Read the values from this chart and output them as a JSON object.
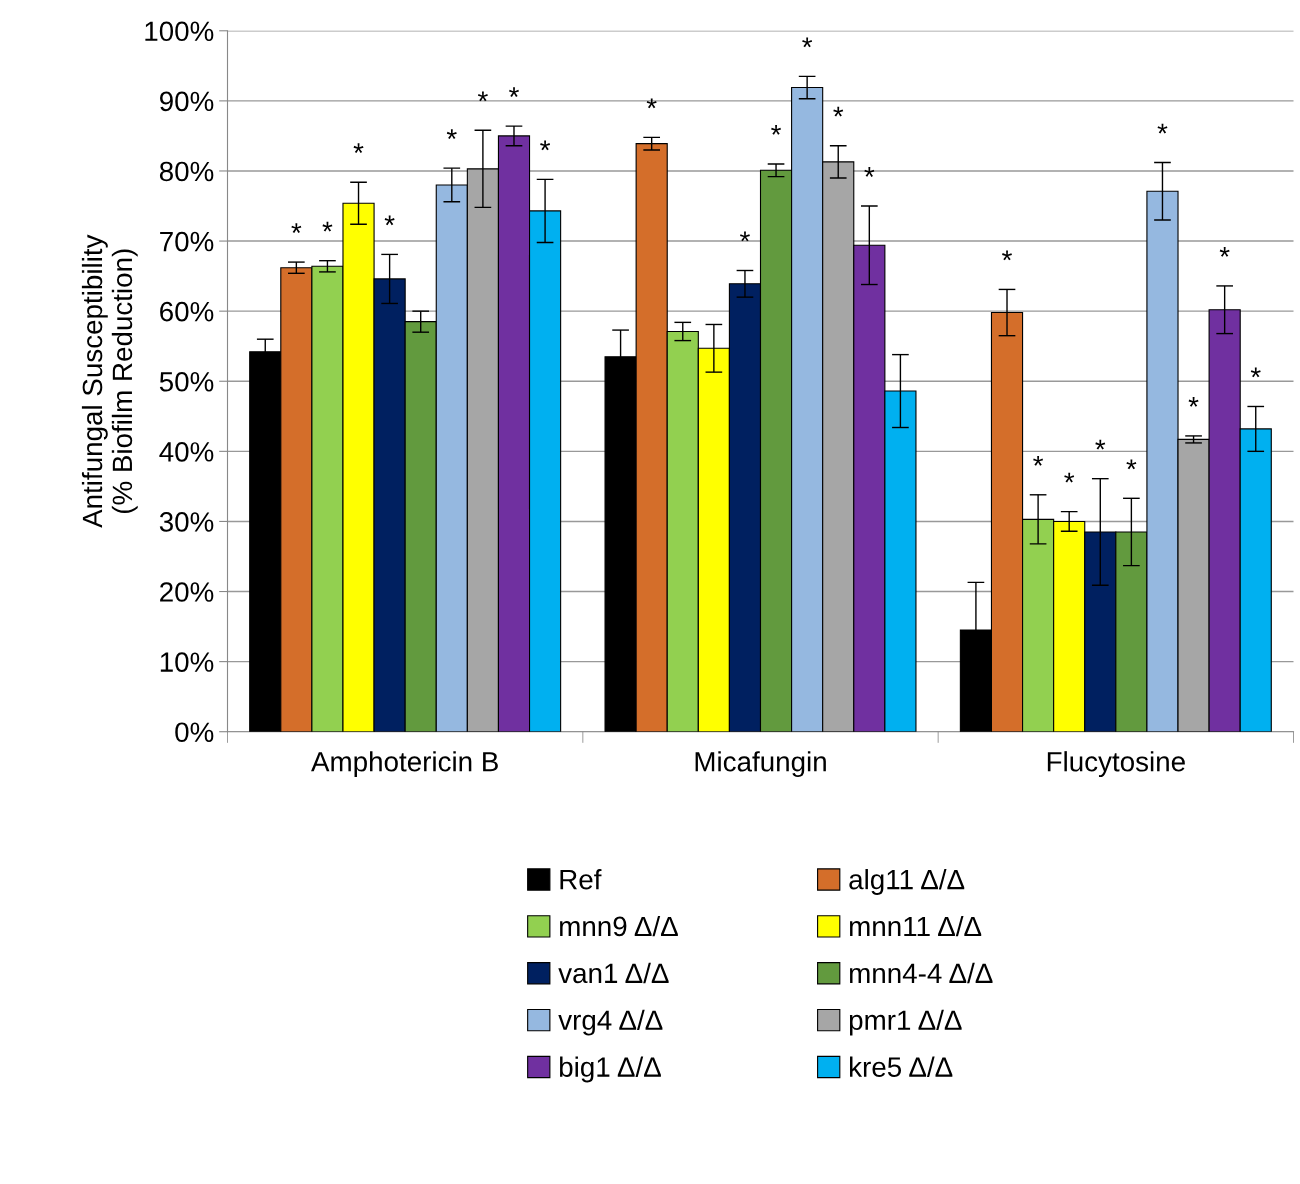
{
  "chart_data": {
    "type": "bar",
    "ylabel": "Antifungal Susceptibility\n(% Biofilm Reduction)",
    "categories": [
      "Amphotericin B",
      "Micafungin",
      "Flucytosine"
    ],
    "ylim": [
      0,
      100
    ],
    "yticks": [
      {
        "value": 0,
        "label": "0%"
      },
      {
        "value": 10,
        "label": "10%"
      },
      {
        "value": 20,
        "label": "20%"
      },
      {
        "value": 30,
        "label": "30%"
      },
      {
        "value": 40,
        "label": "40%"
      },
      {
        "value": 50,
        "label": "50%"
      },
      {
        "value": 60,
        "label": "60%"
      },
      {
        "value": 70,
        "label": "70%"
      },
      {
        "value": 80,
        "label": "80%"
      },
      {
        "value": 90,
        "label": "90%"
      },
      {
        "value": 100,
        "label": "100%"
      }
    ],
    "grid": "y",
    "legend": "bottom",
    "series": [
      {
        "name": "Ref",
        "color": "#000000",
        "values": [
          54.2,
          53.5,
          14.5
        ],
        "errors": [
          1.8,
          3.8,
          6.8
        ],
        "value_labels": [
          null,
          null,
          null
        ]
      },
      {
        "name": "alg11 Δ/Δ",
        "color": "#d46e2a",
        "values": [
          66.2,
          83.9,
          59.8
        ],
        "errors": [
          0.8,
          0.9,
          3.3
        ],
        "value_labels": [
          "*",
          "*",
          "*"
        ]
      },
      {
        "name": "mnn9 Δ/Δ",
        "color": "#92d050",
        "values": [
          66.4,
          57.1,
          30.3
        ],
        "errors": [
          0.8,
          1.3,
          3.5
        ],
        "value_labels": [
          "*",
          null,
          "*"
        ]
      },
      {
        "name": "mnn11 Δ/Δ",
        "color": "#ffff00",
        "values": [
          75.4,
          54.7,
          30.0
        ],
        "errors": [
          3.0,
          3.4,
          1.4
        ],
        "value_labels": [
          "*",
          null,
          "*"
        ]
      },
      {
        "name": "van1 Δ/Δ",
        "color": "#002060",
        "values": [
          64.6,
          63.9,
          28.5
        ],
        "errors": [
          3.5,
          1.9,
          7.6
        ],
        "value_labels": [
          "*",
          "*",
          "*"
        ]
      },
      {
        "name": "mnn4-4 Δ/Δ",
        "color": "#629a3e",
        "values": [
          58.5,
          80.1,
          28.5
        ],
        "errors": [
          1.5,
          0.9,
          4.8
        ],
        "value_labels": [
          null,
          "*",
          "*"
        ]
      },
      {
        "name": "vrg4 Δ/Δ",
        "color": "#95b8e0",
        "values": [
          78.0,
          91.9,
          77.1
        ],
        "errors": [
          2.4,
          1.6,
          4.1
        ],
        "value_labels": [
          "*",
          "*",
          "*"
        ]
      },
      {
        "name": "pmr1 Δ/Δ",
        "color": "#a6a6a6",
        "values": [
          80.3,
          81.3,
          41.7
        ],
        "errors": [
          5.5,
          2.3,
          0.5
        ],
        "value_labels": [
          "*",
          "*",
          "*"
        ]
      },
      {
        "name": "big1 Δ/Δ",
        "color": "#7030a0",
        "values": [
          85.0,
          69.4,
          60.2
        ],
        "errors": [
          1.4,
          5.6,
          3.4
        ],
        "value_labels": [
          "*",
          "*",
          "*"
        ]
      },
      {
        "name": "kre5 Δ/Δ",
        "color": "#00b0f0",
        "values": [
          74.3,
          48.6,
          43.2
        ],
        "errors": [
          4.5,
          5.2,
          3.2
        ],
        "value_labels": [
          "*",
          null,
          "*"
        ]
      }
    ]
  }
}
